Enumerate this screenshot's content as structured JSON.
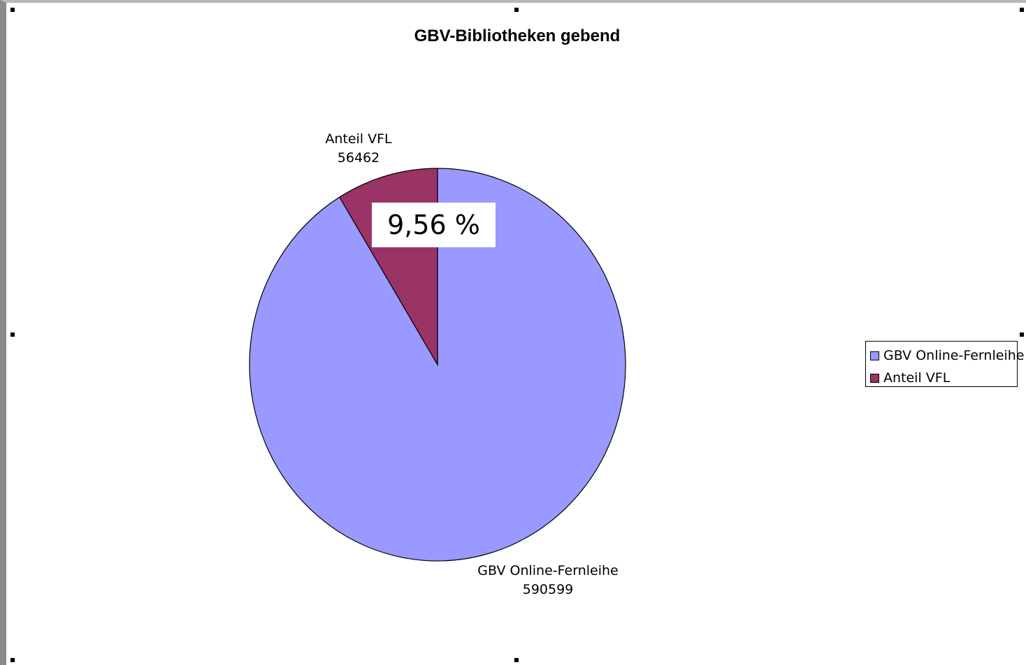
{
  "chart_data": {
    "type": "pie",
    "title": "GBV-Bibliotheken gebend",
    "slices": [
      {
        "label": "GBV Online-Fernleihe",
        "value": 590599,
        "color": "#9999ff"
      },
      {
        "label": "Anteil VFL",
        "value": 56462,
        "color": "#993366"
      }
    ],
    "annotation": "9,56 %",
    "legend_position": "right",
    "legend": [
      "GBV Online-Fernleihe",
      "Anteil VFL"
    ]
  }
}
